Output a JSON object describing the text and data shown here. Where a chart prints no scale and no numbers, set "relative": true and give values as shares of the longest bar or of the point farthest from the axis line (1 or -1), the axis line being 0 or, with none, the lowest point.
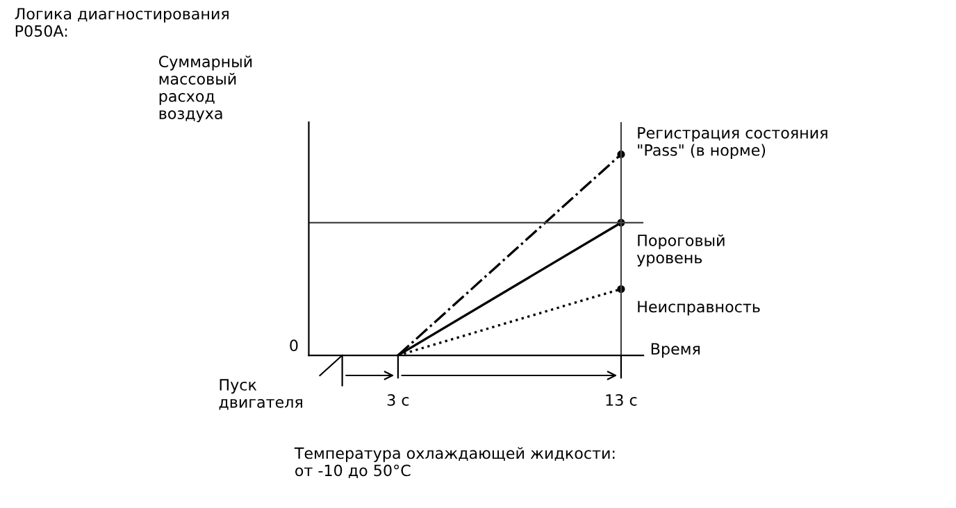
{
  "chart_data": {
    "type": "line",
    "title": "Логика диагностирования\nP050A:",
    "ylabel": "Суммарный\nмассовый\nрасход\nвоздуха",
    "xlabel": "Время",
    "relative": true,
    "xlim": [
      -1,
      14
    ],
    "xticks": [
      {
        "value": 3,
        "label": "3 с"
      },
      {
        "value": 13,
        "label": "13 с"
      }
    ],
    "x": [
      3,
      13
    ],
    "marker": "circle",
    "series": [
      {
        "name": "Регистрация состояния\n\"Pass\" (в норме)",
        "color": "#000000",
        "values": [
          0,
          1
        ],
        "line_style": "dashdot"
      },
      {
        "name": "Пороговый\nуровень",
        "color": "#000000",
        "values": [
          0,
          0.66
        ],
        "line_style": "solid"
      },
      {
        "name": "Неисправность",
        "color": "#000000",
        "values": [
          0,
          0.33
        ],
        "line_style": "dotted"
      }
    ],
    "ref_lines": [
      {
        "axis": "y",
        "value": 0.66,
        "color": "#444444"
      },
      {
        "axis": "x",
        "value": 13,
        "color": "#444444"
      }
    ],
    "annotations": [
      "0",
      "Пуск\nдвигателя",
      "Температура охлаждающей жидкости:\nот -10 до 50°C"
    ],
    "grid": false,
    "legend": false
  }
}
